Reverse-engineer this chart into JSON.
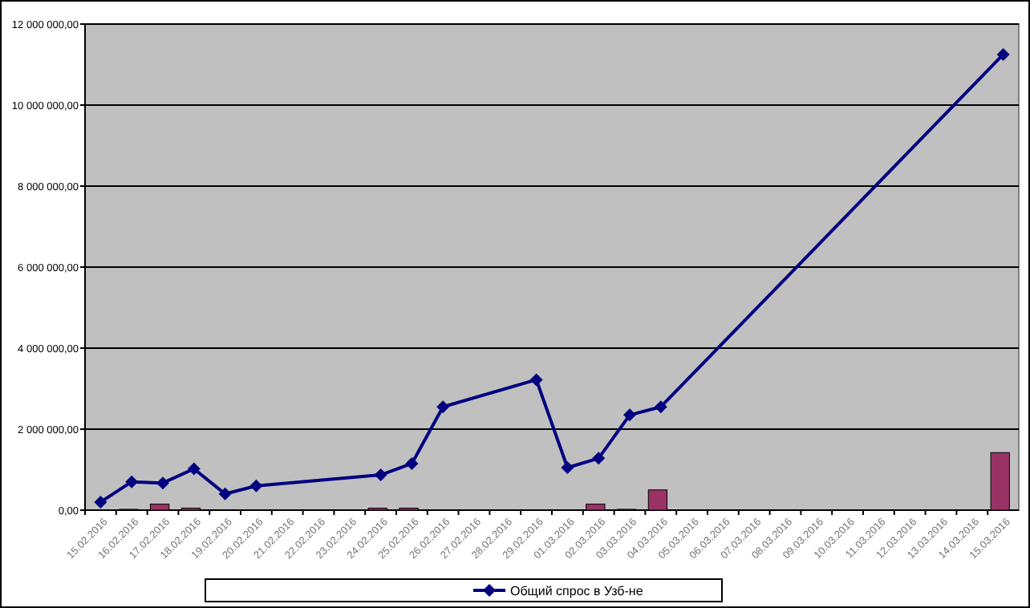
{
  "chart_data": {
    "type": "bar",
    "categories": [
      "15.02.2016",
      "16.02.2016",
      "17.02.2016",
      "18.02.2016",
      "19.02.2016",
      "20.02.2016",
      "21.02.2016",
      "22.02.2016",
      "23.02.2016",
      "24.02.2016",
      "25.02.2016",
      "26.02.2016",
      "27.02.2016",
      "28.02.2016",
      "29.02.2016",
      "01.03.2016",
      "02.03.2016",
      "03.03.2016",
      "04.03.2016",
      "05.03.2016",
      "06.03.2016",
      "07.03.2016",
      "08.03.2016",
      "09.03.2016",
      "10.03.2016",
      "11.03.2016",
      "12.03.2016",
      "13.03.2016",
      "14.03.2016",
      "15.03.2016"
    ],
    "series": [
      {
        "color": "#993366",
        "values": [
          null,
          20000,
          150000,
          50000,
          null,
          null,
          null,
          null,
          null,
          50000,
          50000,
          null,
          null,
          null,
          null,
          null,
          150000,
          20000,
          500000,
          null,
          null,
          null,
          null,
          null,
          null,
          null,
          null,
          null,
          null,
          1420000
        ]
      },
      {
        "type": "line",
        "name": "Общий спрос в Узб-не",
        "color": "#000080",
        "marker": "diamond",
        "x": [
          "15.02.2016",
          "16.02.2016",
          "17.02.2016",
          "18.02.2016",
          "19.02.2016",
          "20.02.2016",
          "24.02.2016",
          "25.02.2016",
          "26.02.2016",
          "29.02.2016",
          "01.03.2016",
          "02.03.2016",
          "03.03.2016",
          "04.03.2016",
          "15.03.2016"
        ],
        "values": [
          200000,
          700000,
          670000,
          1020000,
          400000,
          600000,
          870000,
          1150000,
          2550000,
          3220000,
          1050000,
          1280000,
          2350000,
          2550000,
          11250000
        ]
      }
    ],
    "ylim": [
      0,
      12000000
    ],
    "yticks": [
      {
        "value": 0,
        "label": "0,00"
      },
      {
        "value": 2000000,
        "label": "2 000 000,00"
      },
      {
        "value": 4000000,
        "label": "4 000 000,00"
      },
      {
        "value": 6000000,
        "label": "6 000 000,00"
      },
      {
        "value": 8000000,
        "label": "8 000 000,00"
      },
      {
        "value": 10000000,
        "label": "10 000 000,00"
      },
      {
        "value": 12000000,
        "label": "12 000 000,00"
      }
    ],
    "grid": "y",
    "legend": "bottom"
  }
}
